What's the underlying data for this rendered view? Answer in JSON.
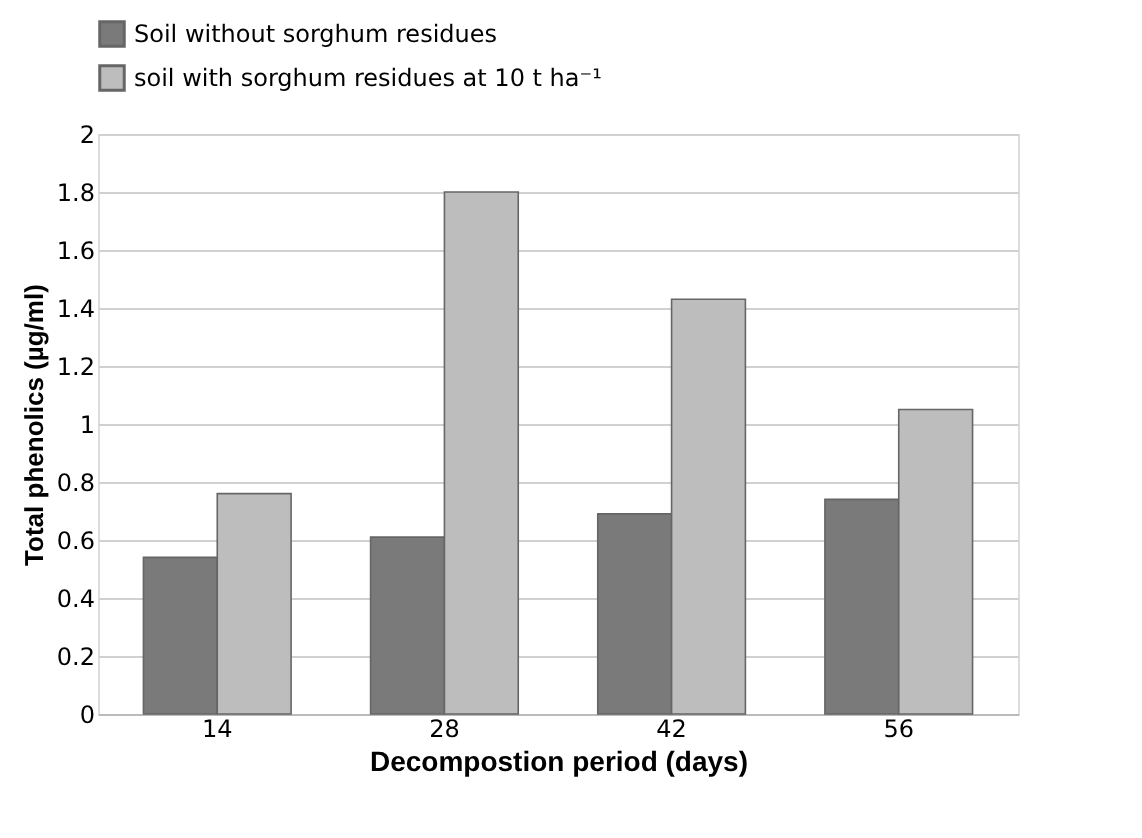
{
  "chart_data": {
    "type": "bar",
    "xlabel": "Decompostion period (days)",
    "ylabel": "Total phenolics (µg/ml)",
    "categories": [
      "14",
      "28",
      "42",
      "56"
    ],
    "series": [
      {
        "name": "Soil without sorghum residues",
        "color": "#7a7a7a",
        "values": [
          0.54,
          0.61,
          0.69,
          0.74
        ]
      },
      {
        "name": "soil with sorghum residues at 10 t ha⁻¹",
        "color": "#bdbdbd",
        "values": [
          0.76,
          1.8,
          1.43,
          1.05
        ]
      }
    ],
    "ylim": [
      0,
      2
    ],
    "yticks": [
      0,
      0.2,
      0.4,
      0.6,
      0.8,
      1,
      1.2,
      1.4,
      1.6,
      1.8,
      2
    ],
    "grid": "y",
    "legend": "top left"
  }
}
